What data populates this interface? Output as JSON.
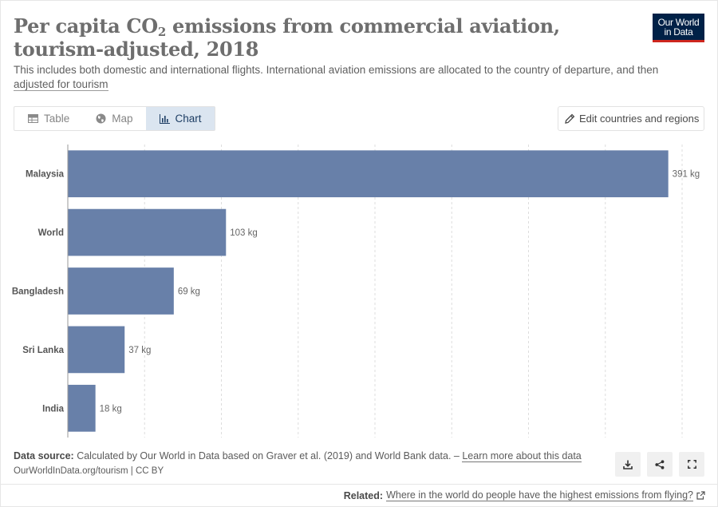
{
  "header": {
    "title_main": "Per capita CO",
    "title_sub": "2",
    "title_rest": " emissions from commercial aviation, tourism-adjusted, 2018",
    "subtitle": "This includes both domestic and international flights. International aviation emissions are allocated to the country of departure, and then ",
    "subtitle_link": "adjusted for tourism",
    "logo_line1": "Our World",
    "logo_line2": "in Data"
  },
  "tabs": [
    {
      "label": "Table",
      "icon": "table-icon",
      "active": false
    },
    {
      "label": "Map",
      "icon": "globe-icon",
      "active": false
    },
    {
      "label": "Chart",
      "icon": "chart-icon",
      "active": true
    }
  ],
  "edit_button": {
    "label": "Edit countries and regions",
    "icon": "pencil-icon"
  },
  "chart_data": {
    "type": "bar",
    "orientation": "horizontal",
    "categories": [
      "Malaysia",
      "World",
      "Bangladesh",
      "Sri Lanka",
      "India"
    ],
    "values": [
      391,
      103,
      69,
      37,
      18
    ],
    "value_labels": [
      "391 kg",
      "103 kg",
      "69 kg",
      "37 kg",
      "18 kg"
    ],
    "unit": "kg",
    "xlim": [
      0,
      400
    ],
    "grid": "vertical dashed",
    "bar_color": "#6880a9"
  },
  "footer": {
    "source_label": "Data source:",
    "source_text": " Calculated by Our World in Data based on Graver et al. (2019) and World Bank data. – ",
    "source_link": "Learn more about this data",
    "license": "OurWorldInData.org/tourism | CC BY",
    "related_label": "Related:",
    "related_link": "Where in the world do people have the highest emissions from flying?",
    "actions": [
      "download-icon",
      "share-icon",
      "fullscreen-icon"
    ]
  }
}
